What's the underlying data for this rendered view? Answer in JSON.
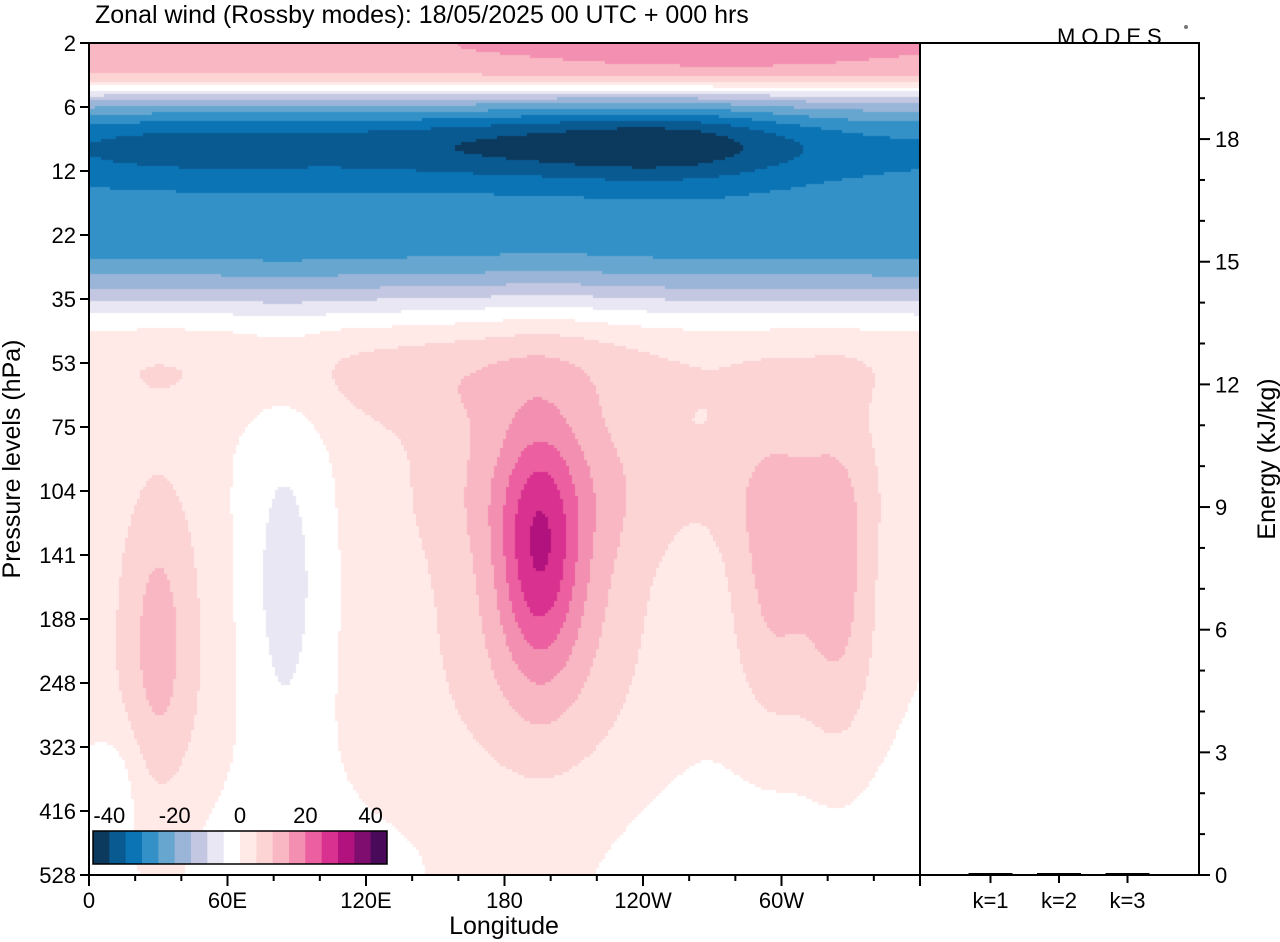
{
  "chart_data": [
    {
      "type": "heatmap",
      "title": "Zonal wind (Rossby modes):  18/05/2025  00 UTC  + 000 hrs",
      "logo": "MODES",
      "xlabel": "Longitude",
      "ylabel": "Pressure levels (hPa)",
      "x_ticks": [
        "0",
        "60E",
        "120E",
        "180",
        "120W",
        "60W"
      ],
      "x_tick_values_deg": [
        0,
        60,
        120,
        180,
        240,
        300
      ],
      "x_range_deg": [
        0,
        360
      ],
      "y_ticks": [
        "2",
        "6",
        "12",
        "22",
        "35",
        "53",
        "75",
        "104",
        "141",
        "188",
        "248",
        "323",
        "416",
        "528"
      ],
      "y_scale": "level-index (top = 2 hPa, bottom = 528 hPa)",
      "colorbar": {
        "labels": [
          "-40",
          "-20",
          "0",
          "20",
          "40"
        ],
        "label_values": [
          -40,
          -20,
          0,
          20,
          40
        ],
        "range": [
          -45,
          45
        ],
        "step": 5,
        "colors": [
          "#0c3a5e",
          "#0a5a92",
          "#0b74b5",
          "#3391c8",
          "#67a6cf",
          "#9ab5d8",
          "#c3c7e2",
          "#e8e7f3",
          "#ffffff",
          "#ffeae8",
          "#fcd4d4",
          "#f8b7c3",
          "#f38fb0",
          "#ec5fa0",
          "#d9318f",
          "#b1127d",
          "#7f0d70",
          "#4a0a5a"
        ]
      },
      "field_summary": [
        {
          "levels_hPa": "2-4",
          "value_ms": 20,
          "note": "positive band at top"
        },
        {
          "levels_hPa": "5-12",
          "value_ms": -35,
          "note": "strong easterly band"
        },
        {
          "levels_hPa": "12-22",
          "value_ms": -25
        },
        {
          "levels_hPa": "22-35",
          "value_ms": -10
        },
        {
          "levels_hPa": "53-141",
          "value_ms": 10,
          "note": "weak westerlies with maxima near 195E and 300E"
        },
        {
          "levels_hPa": "104-188",
          "value_ms": 20,
          "lon_deg": 195,
          "note": "local maximum"
        },
        {
          "levels_hPa": "104-248",
          "value_ms": -5,
          "lon_deg": 85,
          "note": "weak easterly pocket"
        },
        {
          "levels_hPa": "248-528",
          "value_ms": 0,
          "note": "near zero below"
        }
      ]
    },
    {
      "type": "bar",
      "categories": [
        "k=1",
        "k=2",
        "k=3"
      ],
      "values": [
        0.02,
        0.01,
        0.01
      ],
      "ylabel": "Energy (kJ/kg)",
      "ylim": [
        0,
        20
      ],
      "y_ticks": [
        "0",
        "3",
        "6",
        "9",
        "12",
        "15",
        "18"
      ],
      "y_tick_values": [
        0,
        3,
        6,
        9,
        12,
        15,
        18
      ]
    }
  ]
}
